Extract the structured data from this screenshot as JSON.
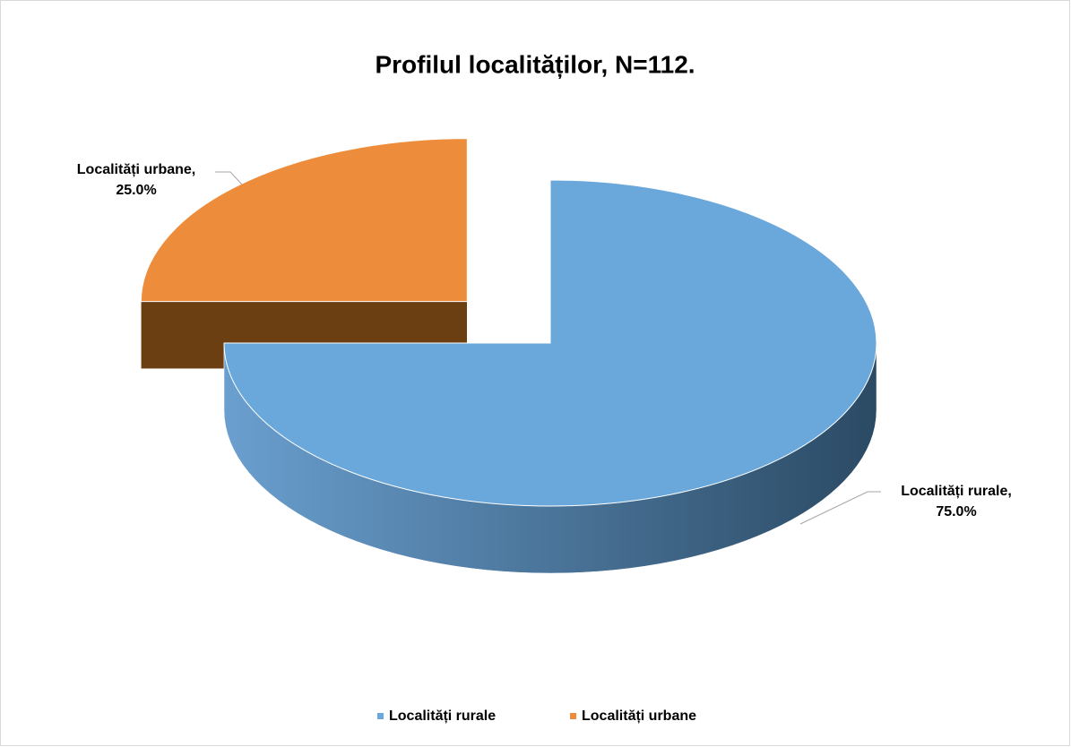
{
  "chart_data": {
    "type": "pie",
    "title": "Profilul localităților, N=112.",
    "categories": [
      "Localități rurale",
      "Localități urbane"
    ],
    "values": [
      75,
      25
    ],
    "value_labels": [
      "75.0%",
      "25.0%"
    ],
    "data_label_names": [
      "Localități rurale,",
      "Localități urbane,"
    ],
    "colors": [
      "#6aa8db",
      "#ed8d3c"
    ],
    "side_colors": [
      [
        "#6a9fcf",
        "#2b4a64"
      ],
      [
        "#6b3f12",
        "#6b3f12"
      ]
    ],
    "exploded": [
      false,
      true
    ],
    "legend": "bottom"
  }
}
